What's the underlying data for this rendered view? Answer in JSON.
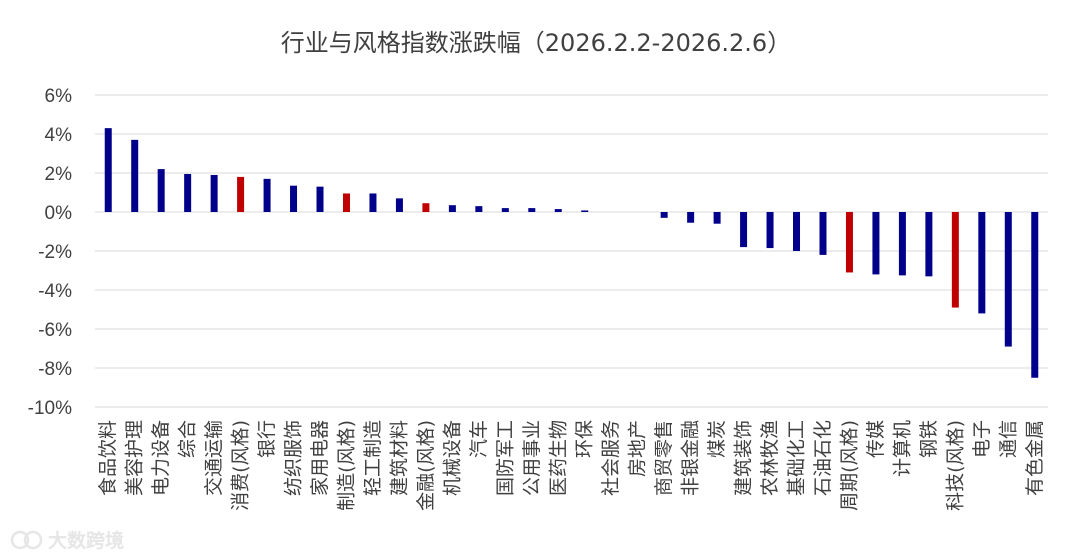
{
  "chart_data": {
    "type": "bar",
    "title": "行业与风格指数涨跌幅（2026.2.2-2026.2.6）",
    "xlabel": "",
    "ylabel": "",
    "ylim": [
      -10,
      6
    ],
    "yticks": [
      6,
      4,
      2,
      0,
      -2,
      -4,
      -6,
      -8,
      -10
    ],
    "ytick_labels": [
      "6%",
      "4%",
      "2%",
      "0%",
      "-2%",
      "-4%",
      "-6%",
      "-8%",
      "-10%"
    ],
    "grid": true,
    "legend": "none",
    "categories": [
      "食品饮料",
      "美容护理",
      "电力设备",
      "综合",
      "交通运输",
      "消费(风格)",
      "银行",
      "纺织服饰",
      "家用电器",
      "制造(风格)",
      "轻工制造",
      "建筑材料",
      "金融(风格)",
      "机械设备",
      "汽车",
      "国防军工",
      "公用事业",
      "医药生物",
      "环保",
      "社会服务",
      "房地产",
      "商贸零售",
      "非银金融",
      "煤炭",
      "建筑装饰",
      "农林牧渔",
      "基础化工",
      "石油石化",
      "周期(风格)",
      "传媒",
      "计算机",
      "钢铁",
      "科技(风格)",
      "电子",
      "通信",
      "有色金属"
    ],
    "values": [
      4.3,
      3.7,
      2.2,
      1.95,
      1.9,
      1.8,
      1.7,
      1.35,
      1.3,
      0.95,
      0.95,
      0.7,
      0.45,
      0.35,
      0.3,
      0.2,
      0.2,
      0.15,
      0.08,
      0.0,
      0.0,
      -0.3,
      -0.55,
      -0.6,
      -1.8,
      -1.85,
      -2.0,
      -2.2,
      -3.1,
      -3.2,
      -3.25,
      -3.3,
      -4.9,
      -5.2,
      -6.9,
      -8.5
    ],
    "highlight": [
      false,
      false,
      false,
      false,
      false,
      true,
      false,
      false,
      false,
      true,
      false,
      false,
      true,
      false,
      false,
      false,
      false,
      false,
      false,
      false,
      false,
      false,
      false,
      false,
      false,
      false,
      false,
      false,
      true,
      false,
      false,
      false,
      true,
      false,
      false,
      false
    ],
    "colors": {
      "normal": "#00008B",
      "highlight": "#C00000"
    }
  },
  "watermark": {
    "text": "大数跨境"
  }
}
